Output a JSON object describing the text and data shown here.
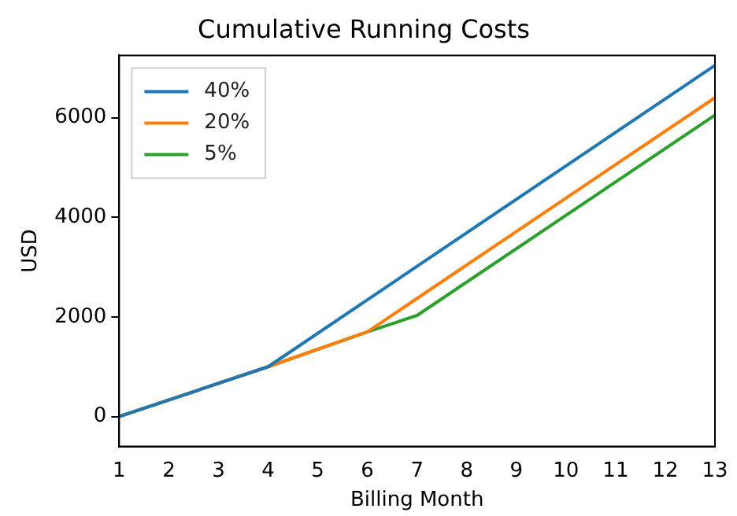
{
  "chart_data": {
    "type": "line",
    "title": "Cumulative Running Costs",
    "xlabel": "Billing Month",
    "ylabel": "USD",
    "xlim": [
      1,
      13
    ],
    "xticks": [
      1,
      2,
      3,
      4,
      5,
      6,
      7,
      8,
      9,
      10,
      11,
      12,
      13
    ],
    "ylim": [
      -600,
      7250
    ],
    "yticks": [
      0,
      2000,
      4000,
      6000
    ],
    "grid": false,
    "legend": "top left",
    "marker": "none",
    "line_style": "solid",
    "series": [
      {
        "name": "40%",
        "color": "#1f77b4",
        "x": [
          1,
          4,
          13
        ],
        "values": [
          0,
          1000,
          7050
        ]
      },
      {
        "name": "20%",
        "color": "#ff7f0e",
        "x": [
          1,
          4,
          6,
          13
        ],
        "values": [
          0,
          1000,
          1700,
          6400
        ]
      },
      {
        "name": "5%",
        "color": "#2ca02c",
        "x": [
          1,
          4,
          6,
          7,
          13
        ],
        "values": [
          0,
          1000,
          1700,
          2030,
          6050
        ]
      }
    ]
  }
}
